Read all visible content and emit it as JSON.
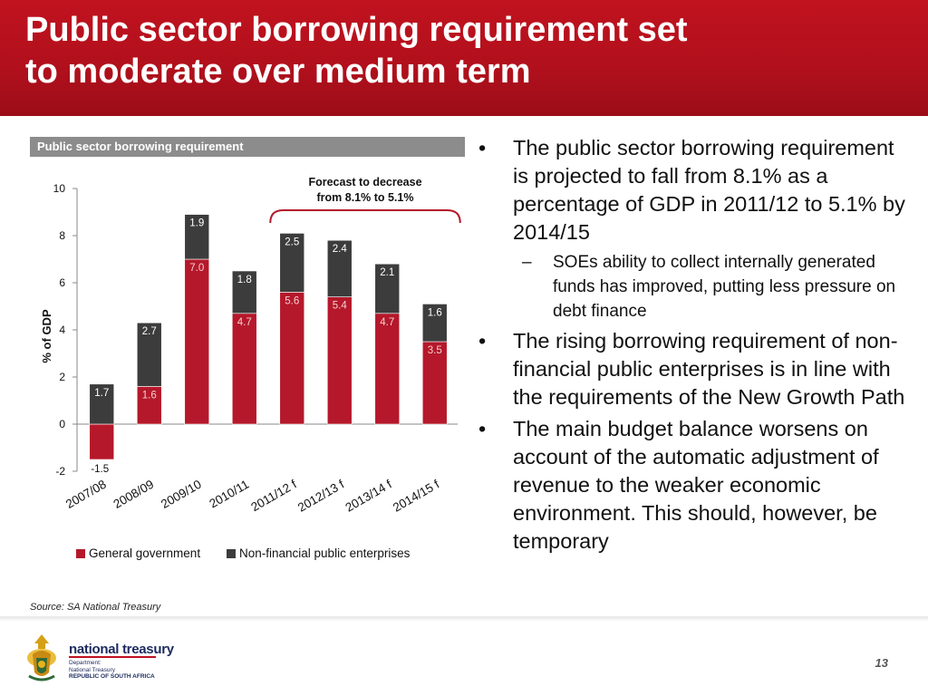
{
  "header": {
    "title_line1": "Public sector borrowing requirement set",
    "title_line2": "to moderate over medium term",
    "color": "#c1121f"
  },
  "chart_panel": {
    "title": "Public sector borrowing requirement"
  },
  "chart_data": {
    "type": "bar",
    "stacked": true,
    "categories": [
      "2007/08",
      "2008/09",
      "2009/10",
      "2010/11",
      "2011/12 f",
      "2012/13 f",
      "2013/14 f",
      "2014/15 f"
    ],
    "series": [
      {
        "name": "General government",
        "color": "#b5182a",
        "values": [
          -1.5,
          1.6,
          7.0,
          4.7,
          5.6,
          5.4,
          4.7,
          3.5
        ],
        "labels": [
          "-1.5",
          "1.6",
          "7.0",
          "4.7",
          "5.6",
          "5.4",
          "4.7",
          "3.5"
        ]
      },
      {
        "name": "Non-financial public enterprises",
        "color": "#3c3c3c",
        "values": [
          1.7,
          2.7,
          1.9,
          1.8,
          2.5,
          2.4,
          2.1,
          1.6
        ],
        "labels": [
          "1.7",
          "2.7",
          "1.9",
          "1.8",
          "2.5",
          "2.4",
          "2.1",
          "1.6"
        ]
      }
    ],
    "ylabel": "% of GDP",
    "ylim": [
      -2,
      10
    ],
    "yticks": [
      "-2",
      "0",
      "2",
      "4",
      "6",
      "8",
      "10"
    ],
    "annotation": {
      "line1": "Forecast to decrease",
      "line2": "from 8.1% to 5.1%",
      "bracket_color": "#b5182a"
    },
    "legend_placement": "bottom",
    "grid": false
  },
  "bullets": {
    "b1": "The public sector borrowing requirement is projected to fall from 8.1% as a percentage of GDP in 2011/12 to 5.1% by 2014/15",
    "b1_sub": "SOEs ability to collect internally generated funds has improved, putting less pressure on debt finance",
    "b2": "The rising borrowing requirement of non-financial public enterprises is in line with the requirements of the New Growth Path",
    "b3": "The main budget balance worsens on account of the automatic adjustment of revenue to the weaker economic environment. This should, however, be temporary",
    "bullet_symbol": "•",
    "dash_symbol": "–"
  },
  "source": "Source: SA National Treasury",
  "footer": {
    "org_name": "national treasury",
    "org_sub_1": "Department:",
    "org_sub_2": "National Treasury",
    "org_sub_3": "REPUBLIC OF SOUTH AFRICA",
    "page_number": "13"
  }
}
